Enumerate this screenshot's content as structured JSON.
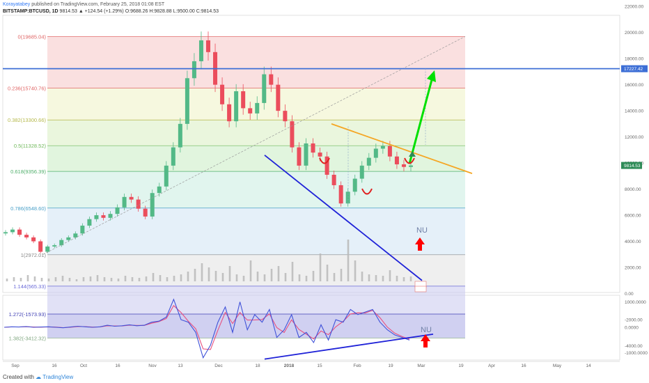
{
  "header": {
    "author": "Korayatabey",
    "published": "published on TradingView.com, February 25, 2018 01:08 EST",
    "symbol": "BITSTAMP:BTCUSD, 1D",
    "last": "9814.53",
    "change": "▲ +124.54 (+1.29%)",
    "open_label": "O:",
    "open": "9688.26",
    "high_label": "H:",
    "high": "9828.88",
    "low_label": "L:",
    "low": "9500.00",
    "close_label": "C:",
    "close": "9814.53"
  },
  "footer": {
    "created_with": "Created with",
    "brand": "TradingView"
  },
  "colors": {
    "up": "#53b987",
    "down": "#eb4d5c",
    "wedge": "#1f22d8",
    "resistance": "#f5a623",
    "projection": "#00e000",
    "arrow_red": "#ff0000",
    "hline": "#3d6fd6",
    "osc_main": "#3f51d8",
    "osc_signal": "#e85080"
  },
  "chart_data": [
    {
      "type": "candlestick",
      "title": "",
      "x": [
        "Sep",
        "16",
        "Oct",
        "16",
        "Nov",
        "13",
        "Dec",
        "18",
        "2018",
        "15",
        "Feb",
        "19",
        "Mar",
        "19",
        "Apr",
        "16",
        "May",
        "14"
      ],
      "ylim": [
        -4500,
        22500
      ],
      "y_ticks": [
        "22000.00",
        "20000.00",
        "18000.00",
        "16000.00",
        "14000.00",
        "12000.00",
        "10000.00",
        "8000.00",
        "6000.00",
        "4000.00",
        "2000.00",
        "0.00",
        "-2000.00",
        "-4000.00"
      ],
      "price_tags": [
        "17227.42",
        "9814.53"
      ],
      "fib_levels": [
        {
          "label": "0(19685.04)",
          "value": 19685.04
        },
        {
          "label": "0.236(15740.76)",
          "value": 15740.76
        },
        {
          "label": "0.382(13300.66)",
          "value": 13300.66
        },
        {
          "label": "0.5(11328.52)",
          "value": 11328.52
        },
        {
          "label": "0.618(9356.39)",
          "value": 9356.39
        },
        {
          "label": "0.786(6548.60)",
          "value": 6548.6
        },
        {
          "label": "1(2972.01)",
          "value": 2972.01
        },
        {
          "label": "1.144(565.33)",
          "value": 565.33
        },
        {
          "label": "1.272(-1573.93)",
          "value": -1573.93
        },
        {
          "label": "1.382(-3412.32)",
          "value": -3412.32
        }
      ],
      "series": [
        {
          "close_path": [
            4700,
            4900,
            4500,
            4300,
            4000,
            3200,
            3600,
            3700,
            4100,
            4300,
            4600,
            5200,
            5700,
            6000,
            5800,
            6100,
            6600,
            7400,
            7200,
            6500,
            5900,
            7700,
            8200,
            9800,
            11200,
            13000,
            16500,
            17800,
            19400,
            18500,
            16000,
            14500,
            13200,
            15500,
            14200,
            13800,
            14600,
            16800,
            16000,
            14000,
            13200,
            11200,
            9800,
            11500,
            10800,
            10500,
            9100,
            8300,
            6900,
            7800,
            8800,
            9800,
            10400,
            11100,
            11300,
            10500,
            9900,
            9700,
            9814
          ]
        }
      ],
      "annotations": {
        "horizontal_line": 17227.42,
        "resistance_trendline": {
          "start": [
            "15",
            13000
          ],
          "end": [
            "19",
            10700
          ]
        },
        "wedge_support": {
          "start": [
            "18",
            10600
          ],
          "end": [
            "Mar",
            1000
          ]
        },
        "projection_arrow": {
          "start": [
            "Feb",
            9950
          ],
          "end": [
            "Mar",
            17100
          ]
        },
        "dashed_diagonal": {
          "start": [
            "Sep",
            3000
          ],
          "end": [
            "Mar",
            19700
          ]
        },
        "label": "NU",
        "upward_arrow_marker": "red arrow up"
      }
    },
    {
      "type": "line",
      "title": "",
      "ylim": [
        -1500,
        1500
      ],
      "y_ticks": [
        "1000.0000",
        "0.0000",
        "-1000.0000"
      ],
      "series": [
        {
          "name": "",
          "values": [
            0,
            20,
            10,
            30,
            0,
            10,
            20,
            0,
            -20,
            10,
            40,
            20,
            0,
            20,
            80,
            40,
            60,
            100,
            60,
            80,
            200,
            240,
            400,
            1100,
            300,
            200,
            -200,
            -1200,
            -700,
            200,
            800,
            -200,
            1000,
            -100,
            500,
            200,
            700,
            -400,
            -100,
            500,
            -400,
            -200,
            -600,
            100,
            -500,
            300,
            200,
            700,
            500,
            600,
            700,
            200,
            -100,
            -300,
            -400,
            -500
          ]
        }
      ],
      "annotations": {
        "trendline": {
          "start": [
            "18",
            -1250
          ],
          "end": [
            "Mar",
            -350
          ]
        },
        "label": "NU"
      }
    }
  ]
}
